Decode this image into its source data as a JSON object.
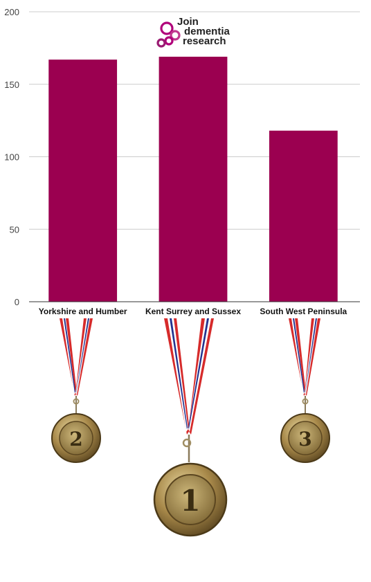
{
  "logo": {
    "line1": "Join",
    "line2": "dementia",
    "line3": "research"
  },
  "chart_data": {
    "type": "bar",
    "categories": [
      "Yorkshire and Humber",
      "Kent Surrey and Sussex",
      "South West Peninsula"
    ],
    "values": [
      167,
      169,
      118
    ],
    "ylim": [
      0,
      200
    ],
    "yticks": [
      0,
      50,
      100,
      150,
      200
    ],
    "grid": true,
    "bar_color": "#9b0050"
  },
  "medals": [
    {
      "label": "2"
    },
    {
      "label": "1"
    },
    {
      "label": "3"
    }
  ],
  "colors": {
    "brand": "#b0007a",
    "ribbon_red": "#d62b2b",
    "ribbon_blue": "#23338f",
    "gold": "#b59a55"
  }
}
